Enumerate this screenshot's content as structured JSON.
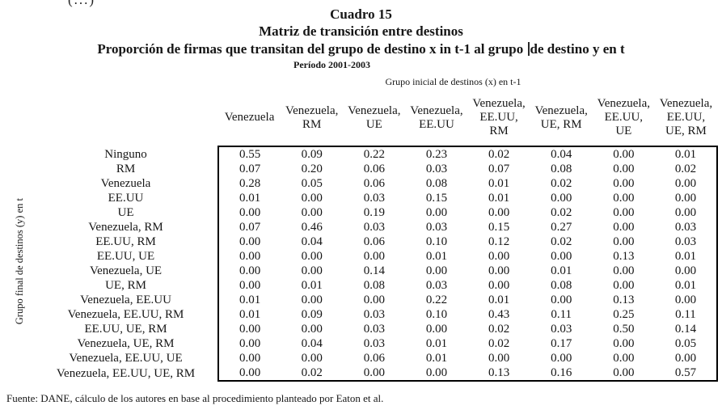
{
  "page": {
    "corner_fragment": "(...)",
    "footer": "Fuente: DANE, cálculo de los autores en base al procedimiento planteado por Eaton et al."
  },
  "title": {
    "line1": "Cuadro 15",
    "line2": "Matriz de transición entre destinos",
    "line3_before_cursor": "Proporción de firmas que transitan del grupo de destino  x in t-1 al grupo ",
    "line3_after_cursor": "de destino  y en t",
    "line4": "Período  2001-2003"
  },
  "table": {
    "column_axis_label": "Grupo inicial de destinos (x) en t-1",
    "row_axis_label": "Grupo final de destinos (y) en t",
    "columns": [
      "Venezuela",
      "Venezuela,\nRM",
      "Venezuela,\nUE",
      "Venezuela,\nEE.UU",
      "Venezuela,\nEE.UU,\nRM",
      "Venezuela,\nUE, RM",
      "Venezuela,\nEE.UU,\nUE",
      "Venezuela,\nEE.UU,\nUE, RM"
    ],
    "rows": [
      {
        "label": "Ninguno",
        "values": [
          "0.55",
          "0.09",
          "0.22",
          "0.23",
          "0.02",
          "0.04",
          "0.00",
          "0.01"
        ]
      },
      {
        "label": "RM",
        "values": [
          "0.07",
          "0.20",
          "0.06",
          "0.03",
          "0.07",
          "0.08",
          "0.00",
          "0.02"
        ]
      },
      {
        "label": "Venezuela",
        "values": [
          "0.28",
          "0.05",
          "0.06",
          "0.08",
          "0.01",
          "0.02",
          "0.00",
          "0.00"
        ]
      },
      {
        "label": "EE.UU",
        "values": [
          "0.01",
          "0.00",
          "0.03",
          "0.15",
          "0.01",
          "0.00",
          "0.00",
          "0.00"
        ]
      },
      {
        "label": "UE",
        "values": [
          "0.00",
          "0.00",
          "0.19",
          "0.00",
          "0.00",
          "0.02",
          "0.00",
          "0.00"
        ]
      },
      {
        "label": "Venezuela, RM",
        "values": [
          "0.07",
          "0.46",
          "0.03",
          "0.03",
          "0.15",
          "0.27",
          "0.00",
          "0.03"
        ]
      },
      {
        "label": "EE.UU, RM",
        "values": [
          "0.00",
          "0.04",
          "0.06",
          "0.10",
          "0.12",
          "0.02",
          "0.00",
          "0.03"
        ]
      },
      {
        "label": "EE.UU, UE",
        "values": [
          "0.00",
          "0.00",
          "0.00",
          "0.01",
          "0.00",
          "0.00",
          "0.13",
          "0.01"
        ]
      },
      {
        "label": "Venezuela, UE",
        "values": [
          "0.00",
          "0.00",
          "0.14",
          "0.00",
          "0.00",
          "0.01",
          "0.00",
          "0.00"
        ]
      },
      {
        "label": "UE, RM",
        "values": [
          "0.00",
          "0.01",
          "0.08",
          "0.03",
          "0.00",
          "0.08",
          "0.00",
          "0.01"
        ]
      },
      {
        "label": "Venezuela, EE.UU",
        "values": [
          "0.01",
          "0.00",
          "0.00",
          "0.22",
          "0.01",
          "0.00",
          "0.13",
          "0.00"
        ]
      },
      {
        "label": "Venezuela, EE.UU, RM",
        "values": [
          "0.01",
          "0.09",
          "0.03",
          "0.10",
          "0.43",
          "0.11",
          "0.25",
          "0.11"
        ]
      },
      {
        "label": "EE.UU, UE, RM",
        "values": [
          "0.00",
          "0.00",
          "0.03",
          "0.00",
          "0.02",
          "0.03",
          "0.50",
          "0.14"
        ]
      },
      {
        "label": "Venezuela, UE, RM",
        "values": [
          "0.00",
          "0.04",
          "0.03",
          "0.01",
          "0.02",
          "0.17",
          "0.00",
          "0.05"
        ]
      },
      {
        "label": "Venezuela, EE.UU, UE",
        "values": [
          "0.00",
          "0.00",
          "0.06",
          "0.01",
          "0.00",
          "0.00",
          "0.00",
          "0.00"
        ]
      },
      {
        "label": "Venezuela, EE.UU, UE, RM",
        "values": [
          "0.00",
          "0.02",
          "0.00",
          "0.00",
          "0.13",
          "0.16",
          "0.00",
          "0.57"
        ]
      }
    ]
  }
}
